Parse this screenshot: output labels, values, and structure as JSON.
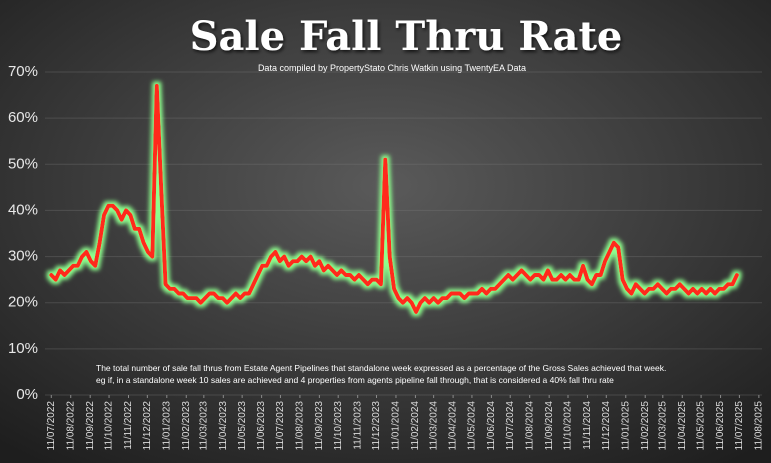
{
  "chart_data": {
    "type": "line",
    "title": "Sale Fall Thru Rate",
    "subtitle": "Data compiled by PropertyStato Chris Watkin using TwentyEA Data",
    "notes": [
      "The total number of sale fall thrus from Estate Agent Pipelines that standalone week expressed as a percentage of the Gross Sales achieved that week.",
      "eg if, in a standalone week 10 sales are achieved and 4 properties from agents pipeline fall through, that is considered a 40%  fall thru rate"
    ],
    "x": [
      "2022-07-11",
      "2022-07-18",
      "2022-07-25",
      "2022-08-01",
      "2022-08-08",
      "2022-08-15",
      "2022-08-22",
      "2022-08-29",
      "2022-09-05",
      "2022-09-12",
      "2022-09-19",
      "2022-09-26",
      "2022-10-03",
      "2022-10-10",
      "2022-10-17",
      "2022-10-24",
      "2022-10-31",
      "2022-11-07",
      "2022-11-14",
      "2022-11-21",
      "2022-11-28",
      "2022-12-05",
      "2022-12-12",
      "2022-12-19",
      "2022-12-26",
      "2023-01-02",
      "2023-01-09",
      "2023-01-16",
      "2023-01-23",
      "2023-01-30",
      "2023-02-06",
      "2023-02-13",
      "2023-02-20",
      "2023-02-27",
      "2023-03-06",
      "2023-03-13",
      "2023-03-20",
      "2023-03-27",
      "2023-04-03",
      "2023-04-10",
      "2023-04-17",
      "2023-04-24",
      "2023-05-01",
      "2023-05-08",
      "2023-05-15",
      "2023-05-22",
      "2023-05-29",
      "2023-06-05",
      "2023-06-12",
      "2023-06-19",
      "2023-06-26",
      "2023-07-03",
      "2023-07-10",
      "2023-07-17",
      "2023-07-24",
      "2023-07-31",
      "2023-08-07",
      "2023-08-14",
      "2023-08-21",
      "2023-08-28",
      "2023-09-04",
      "2023-09-11",
      "2023-09-18",
      "2023-09-25",
      "2023-10-02",
      "2023-10-09",
      "2023-10-16",
      "2023-10-23",
      "2023-10-30",
      "2023-11-06",
      "2023-11-13",
      "2023-11-20",
      "2023-11-27",
      "2023-12-04",
      "2023-12-11",
      "2023-12-18",
      "2023-12-25",
      "2024-01-01",
      "2024-01-08",
      "2024-01-15",
      "2024-01-22",
      "2024-01-29",
      "2024-02-05",
      "2024-02-12",
      "2024-02-19",
      "2024-02-26",
      "2024-03-04",
      "2024-03-11",
      "2024-03-18",
      "2024-03-25",
      "2024-04-01",
      "2024-04-08",
      "2024-04-15",
      "2024-04-22",
      "2024-04-29",
      "2024-05-06",
      "2024-05-13",
      "2024-05-20",
      "2024-05-27",
      "2024-06-03",
      "2024-06-10",
      "2024-06-17",
      "2024-06-24",
      "2024-07-01",
      "2024-07-08",
      "2024-07-15",
      "2024-07-22",
      "2024-07-29",
      "2024-08-05",
      "2024-08-12",
      "2024-08-19",
      "2024-08-26",
      "2024-09-02",
      "2024-09-09",
      "2024-09-16",
      "2024-09-23",
      "2024-09-30",
      "2024-10-07",
      "2024-10-14",
      "2024-10-21",
      "2024-10-28",
      "2024-11-04",
      "2024-11-11",
      "2024-11-18",
      "2024-11-25",
      "2024-12-02",
      "2024-12-09",
      "2024-12-16",
      "2024-12-23",
      "2024-12-30",
      "2025-01-06",
      "2025-01-13",
      "2025-01-20",
      "2025-01-27",
      "2025-02-03",
      "2025-02-10",
      "2025-02-17",
      "2025-02-24",
      "2025-03-03",
      "2025-03-10",
      "2025-03-17",
      "2025-03-24",
      "2025-03-31",
      "2025-04-07",
      "2025-04-14",
      "2025-04-21",
      "2025-04-28",
      "2025-05-05",
      "2025-05-12",
      "2025-05-19",
      "2025-05-26",
      "2025-06-02",
      "2025-06-09",
      "2025-06-16",
      "2025-06-23",
      "2025-06-30",
      "2025-07-07"
    ],
    "series": [
      {
        "color": "#ff2a1a",
        "glow": "#8dff8d",
        "values": [
          26,
          25,
          27,
          26,
          27,
          28,
          28,
          30,
          31,
          29,
          28,
          33,
          39,
          41,
          41,
          40,
          38,
          40,
          39,
          36,
          36,
          33,
          31,
          30,
          67,
          45,
          24,
          23,
          23,
          22,
          22,
          21,
          21,
          21,
          20,
          21,
          22,
          22,
          21,
          21,
          20,
          21,
          22,
          21,
          22,
          22,
          24,
          26,
          28,
          28,
          30,
          31,
          29,
          30,
          28,
          29,
          29,
          30,
          29,
          30,
          28,
          29,
          27,
          28,
          27,
          26,
          27,
          26,
          26,
          25,
          26,
          25,
          24,
          25,
          25,
          24,
          51,
          30,
          23,
          21,
          20,
          21,
          20,
          18,
          20,
          21,
          20,
          21,
          20,
          21,
          21,
          22,
          22,
          22,
          21,
          22,
          22,
          22,
          23,
          22,
          23,
          23,
          24,
          25,
          26,
          25,
          26,
          27,
          26,
          25,
          26,
          26,
          25,
          27,
          25,
          25,
          26,
          25,
          26,
          25,
          25,
          28,
          25,
          24,
          26,
          26,
          29,
          31,
          33,
          32,
          25,
          23,
          22,
          24,
          23,
          22,
          23,
          23,
          24,
          23,
          22,
          23,
          23,
          24,
          23,
          22,
          23,
          22,
          23,
          22,
          23,
          22,
          23,
          23,
          24,
          24,
          26
        ]
      }
    ],
    "xlim": [
      "2022-07-01",
      "2025-08-16"
    ],
    "xticks": [
      {
        "value": "2022-07-11",
        "label": "11/07/2022"
      },
      {
        "value": "2022-08-11",
        "label": "11/08/2022"
      },
      {
        "value": "2022-09-11",
        "label": "11/09/2022"
      },
      {
        "value": "2022-10-11",
        "label": "11/10/2022"
      },
      {
        "value": "2022-11-11",
        "label": "11/11/2022"
      },
      {
        "value": "2022-12-11",
        "label": "11/12/2022"
      },
      {
        "value": "2023-01-11",
        "label": "11/01/2023"
      },
      {
        "value": "2023-02-11",
        "label": "11/02/2023"
      },
      {
        "value": "2023-03-11",
        "label": "11/03/2023"
      },
      {
        "value": "2023-04-11",
        "label": "11/04/2023"
      },
      {
        "value": "2023-05-11",
        "label": "11/05/2023"
      },
      {
        "value": "2023-06-11",
        "label": "11/06/2023"
      },
      {
        "value": "2023-07-11",
        "label": "11/07/2023"
      },
      {
        "value": "2023-08-11",
        "label": "11/08/2023"
      },
      {
        "value": "2023-09-11",
        "label": "11/09/2023"
      },
      {
        "value": "2023-10-11",
        "label": "11/10/2023"
      },
      {
        "value": "2023-11-11",
        "label": "11/11/2023"
      },
      {
        "value": "2023-12-11",
        "label": "11/12/2023"
      },
      {
        "value": "2024-01-11",
        "label": "11/01/2024"
      },
      {
        "value": "2024-02-11",
        "label": "11/02/2024"
      },
      {
        "value": "2024-03-11",
        "label": "11/03/2024"
      },
      {
        "value": "2024-04-11",
        "label": "11/04/2024"
      },
      {
        "value": "2024-05-11",
        "label": "11/05/2024"
      },
      {
        "value": "2024-06-11",
        "label": "11/06/2024"
      },
      {
        "value": "2024-07-11",
        "label": "11/07/2024"
      },
      {
        "value": "2024-08-11",
        "label": "11/08/2024"
      },
      {
        "value": "2024-09-11",
        "label": "11/09/2024"
      },
      {
        "value": "2024-10-11",
        "label": "11/10/2024"
      },
      {
        "value": "2024-11-11",
        "label": "11/11/2024"
      },
      {
        "value": "2024-12-11",
        "label": "11/12/2024"
      },
      {
        "value": "2025-01-11",
        "label": "11/01/2025"
      },
      {
        "value": "2025-02-11",
        "label": "11/02/2025"
      },
      {
        "value": "2025-03-11",
        "label": "11/03/2025"
      },
      {
        "value": "2025-04-11",
        "label": "11/04/2025"
      },
      {
        "value": "2025-05-11",
        "label": "11/05/2025"
      },
      {
        "value": "2025-06-11",
        "label": "11/06/2025"
      },
      {
        "value": "2025-07-11",
        "label": "11/07/2025"
      },
      {
        "value": "2025-08-11",
        "label": "11/08/2025"
      }
    ],
    "ylim": [
      0,
      70
    ],
    "yticks": [
      {
        "value": 0,
        "label": "0%"
      },
      {
        "value": 10,
        "label": "10%"
      },
      {
        "value": 20,
        "label": "20%"
      },
      {
        "value": 30,
        "label": "30%"
      },
      {
        "value": 40,
        "label": "40%"
      },
      {
        "value": 50,
        "label": "50%"
      },
      {
        "value": 60,
        "label": "60%"
      },
      {
        "value": 70,
        "label": "70%"
      }
    ],
    "grid": true
  }
}
